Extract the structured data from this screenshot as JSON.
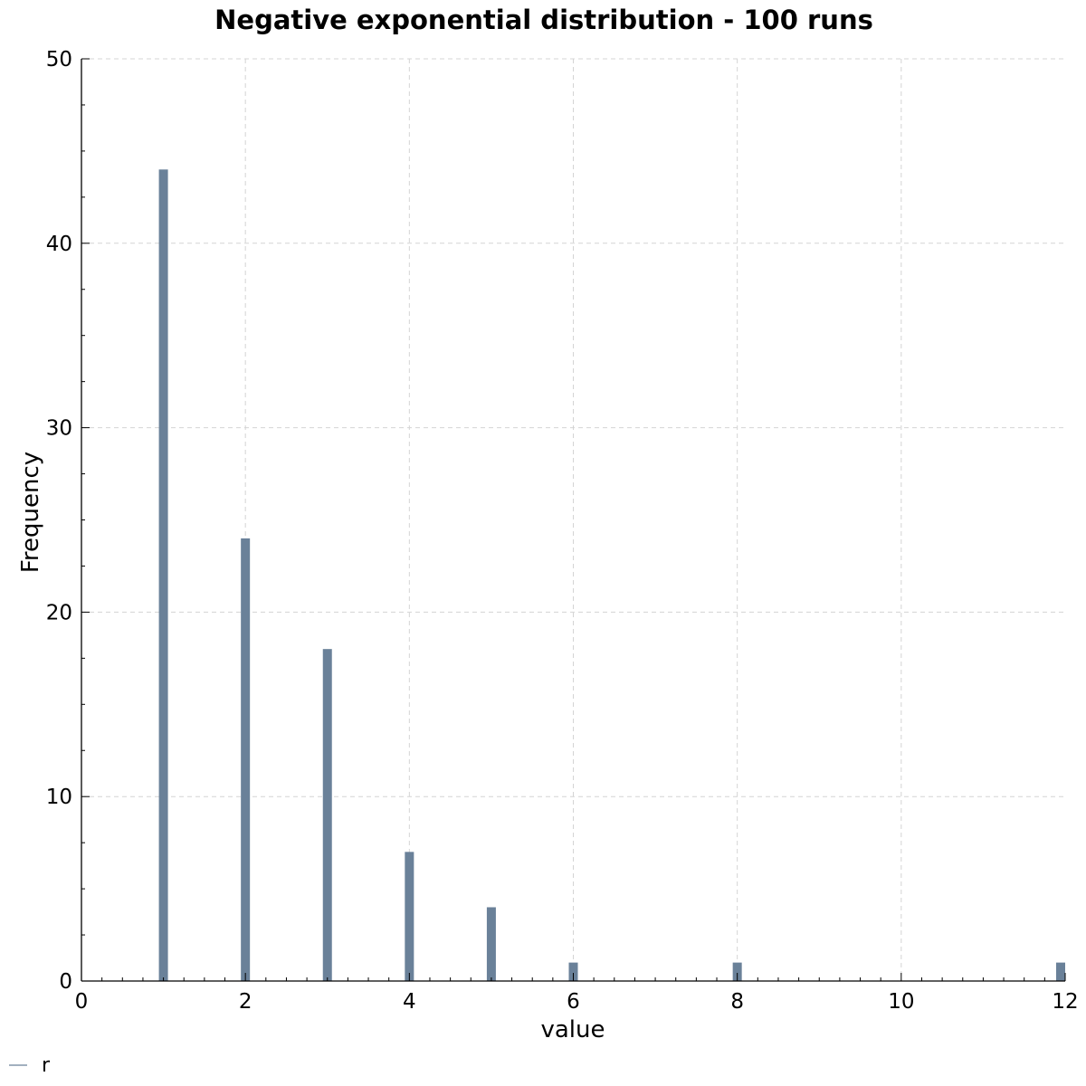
{
  "chart_data": {
    "type": "bar",
    "title": "Negative exponential distribution - 100 runs",
    "xlabel": "value",
    "ylabel": "Frequency",
    "xlim": [
      0,
      12
    ],
    "ylim": [
      0,
      50
    ],
    "xticks": [
      0,
      2,
      4,
      6,
      8,
      10,
      12
    ],
    "yticks": [
      0,
      10,
      20,
      30,
      40,
      50
    ],
    "grid": true,
    "legend_position": "bottom-left",
    "series": [
      {
        "name": "r",
        "color": "#6a8199",
        "x": [
          1,
          2,
          3,
          4,
          5,
          6,
          8,
          12
        ],
        "values": [
          44,
          24,
          18,
          7,
          4,
          1,
          1,
          1
        ]
      }
    ]
  }
}
